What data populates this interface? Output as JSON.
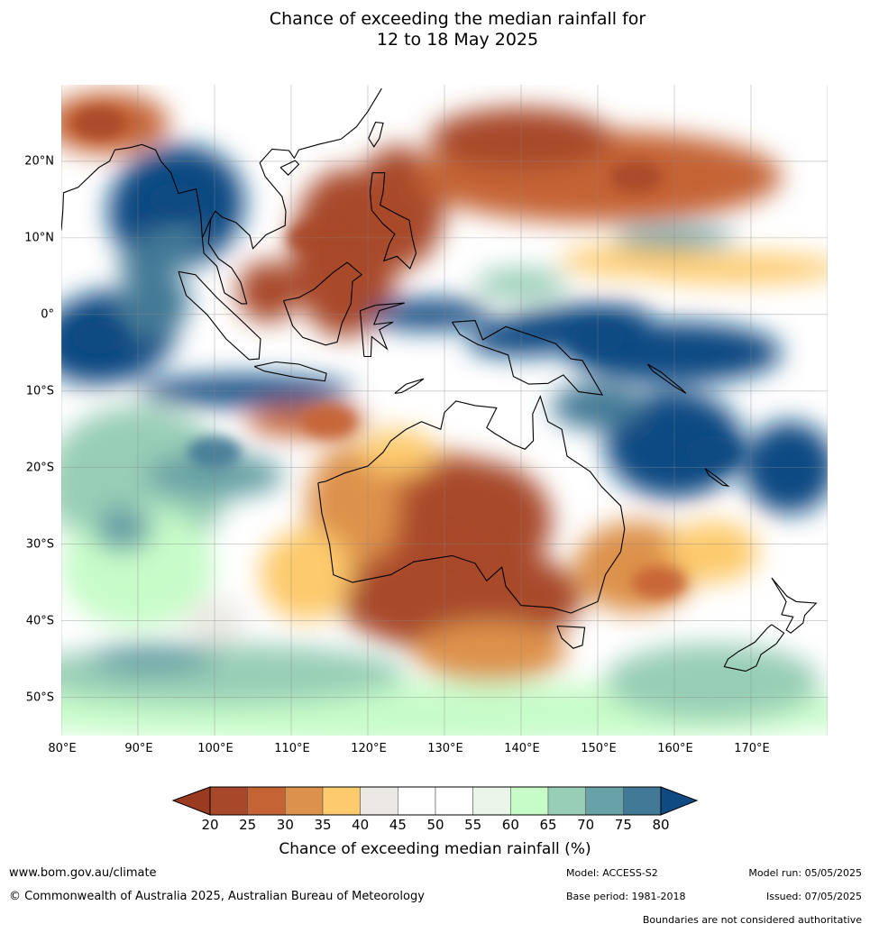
{
  "title_line1": "Chance of exceeding the median rainfall for",
  "title_line2": "12 to 18 May 2025",
  "map": {
    "lon_range": [
      80,
      180
    ],
    "lat_range": [
      -55,
      30
    ],
    "lon_ticks": [
      "80°E",
      "90°E",
      "100°E",
      "110°E",
      "120°E",
      "130°E",
      "140°E",
      "150°E",
      "160°E",
      "170°E"
    ],
    "lat_ticks": [
      "20°N",
      "10°N",
      "0°",
      "10°S",
      "20°S",
      "30°S",
      "40°S",
      "50°S"
    ],
    "regions": [
      {
        "kind": "dry",
        "level": 20,
        "lon": 133,
        "lat": -30,
        "note": "Central & southern Australia"
      },
      {
        "kind": "dry",
        "level": 20,
        "lon": 113,
        "lat": 10,
        "note": "South China Sea"
      },
      {
        "kind": "dry",
        "level": 20,
        "lon": 155,
        "lat": 18,
        "note": "Western North Pacific"
      },
      {
        "kind": "dry",
        "level": 25,
        "lon": 158,
        "lat": -35,
        "note": "Tasman Sea"
      },
      {
        "kind": "dry",
        "level": 25,
        "lon": 115,
        "lat": -14,
        "note": "Eastern Indian Ocean north of WA"
      },
      {
        "kind": "dry",
        "level": 20,
        "lon": 85,
        "lat": 25,
        "note": "Bay of Bengal north"
      },
      {
        "kind": "wet",
        "level": 80,
        "lon": 95,
        "lat": 15,
        "note": "Bay of Bengal / Myanmar"
      },
      {
        "kind": "wet",
        "level": 80,
        "lon": 150,
        "lat": -3,
        "note": "Papua New Guinea / Solomon Sea"
      },
      {
        "kind": "wet",
        "level": 80,
        "lon": 165,
        "lat": -18,
        "note": "Vanuatu / Coral Sea east"
      },
      {
        "kind": "wet",
        "level": 80,
        "lon": 85,
        "lat": -3,
        "note": "Equatorial Indian Ocean"
      },
      {
        "kind": "wet",
        "level": 75,
        "lon": 100,
        "lat": -18,
        "note": "Southern Indian Ocean"
      }
    ]
  },
  "colorbar": {
    "boundaries": [
      "20",
      "25",
      "30",
      "35",
      "40",
      "45",
      "50",
      "55",
      "60",
      "65",
      "70",
      "75",
      "80"
    ],
    "colors": [
      "#9a3a20",
      "#a8482a",
      "#c56334",
      "#dd924b",
      "#fdca6d",
      "#ece9e4",
      "#ffffff",
      "#ffffff",
      "#e8f5e7",
      "#c7fcc9",
      "#98ceb6",
      "#69a2a6",
      "#427996",
      "#0f4a82"
    ],
    "label": "Chance of exceeding median rainfall (%)"
  },
  "footer": {
    "website": "www.bom.gov.au/climate",
    "copyright": "© Commonwealth of Australia 2025, Australian Bureau of Meteorology",
    "model": "Model: ACCESS-S2",
    "base_period": "Base period: 1981-2018",
    "model_run": "Model run: 05/05/2025",
    "issued": "Issued: 07/05/2025",
    "boundaries_note": "Boundaries are not considered authoritative"
  }
}
